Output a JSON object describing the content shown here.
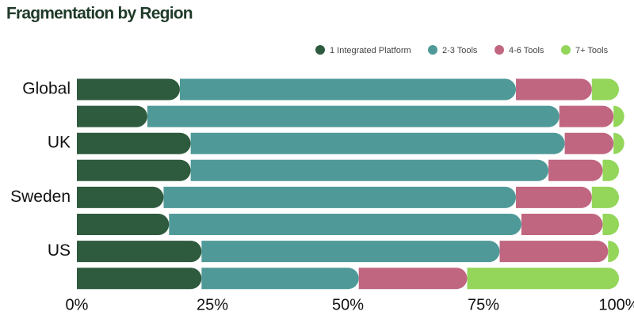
{
  "chart_data": {
    "type": "stacked-bar-horizontal",
    "title": "Fragmentation by Region",
    "categories": [
      "Global",
      null,
      "UK",
      null,
      "Sweden",
      null,
      "US",
      null
    ],
    "series": [
      {
        "name": "1 Integrated Platform",
        "color": "#2e5a3e",
        "values": [
          19,
          13,
          21,
          21,
          16,
          17,
          23,
          23
        ]
      },
      {
        "name": "2-3 Tools",
        "color": "#4f9a98",
        "values": [
          62,
          76,
          69,
          66,
          65,
          65,
          55,
          29
        ]
      },
      {
        "name": "4-6 Tools",
        "color": "#c06680",
        "values": [
          14,
          10,
          9,
          10,
          14,
          15,
          20,
          20
        ]
      },
      {
        "name": "7+ Tools",
        "color": "#93d65a",
        "values": [
          5,
          1,
          1,
          3,
          5,
          3,
          2,
          28
        ]
      }
    ],
    "xlim": [
      0,
      100
    ],
    "xticks": [
      {
        "value": 0,
        "label": "0%"
      },
      {
        "value": 25,
        "label": "25%"
      },
      {
        "value": 50,
        "label": "50%"
      },
      {
        "value": 75,
        "label": "75%"
      },
      {
        "value": 100,
        "label": "100%"
      }
    ],
    "legend": "top-right"
  }
}
